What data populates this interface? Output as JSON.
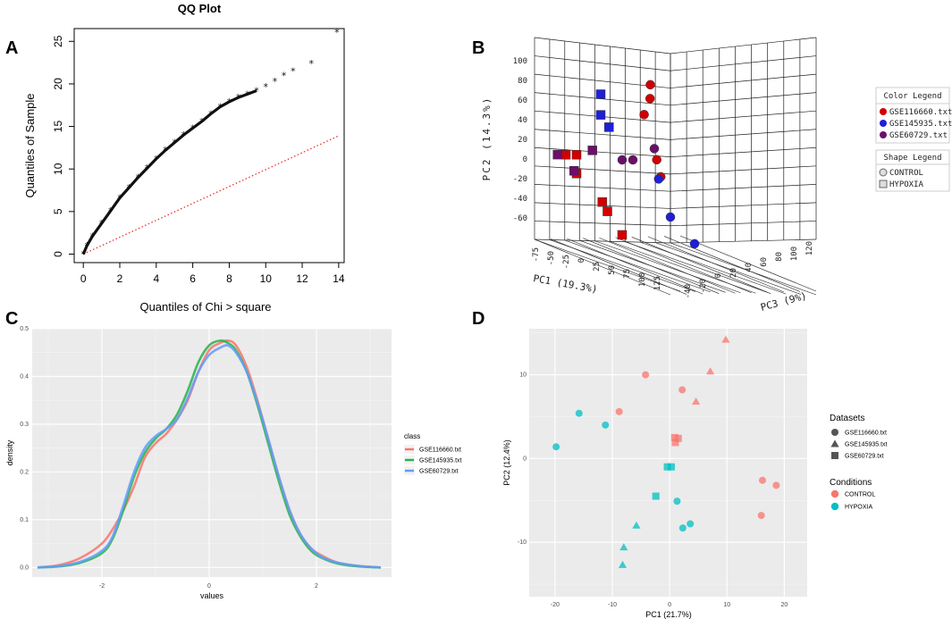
{
  "panel_labels": {
    "a": "A",
    "b": "B",
    "c": "C",
    "d": "D"
  },
  "chart_data": [
    {
      "id": "A",
      "type": "scatter",
      "title": "QQ Plot",
      "xlabel": "Quantiles of Chi > square",
      "ylabel": "Quantiles of Sample",
      "xlim": [
        -0.5,
        14.3
      ],
      "ylim": [
        -1,
        26.5
      ],
      "xticks": [
        0,
        2,
        4,
        6,
        8,
        10,
        12,
        14
      ],
      "yticks": [
        0,
        5,
        10,
        15,
        20,
        25
      ],
      "reference_line": {
        "x": [
          0,
          14
        ],
        "y": [
          0,
          13.9
        ],
        "color": "#e8322e",
        "style": "dotted"
      },
      "points": [
        [
          0,
          0
        ],
        [
          0.2,
          1.0
        ],
        [
          0.5,
          2.1
        ],
        [
          1,
          3.6
        ],
        [
          1.5,
          5.1
        ],
        [
          2,
          6.6
        ],
        [
          2.5,
          7.8
        ],
        [
          3,
          9.0
        ],
        [
          3.5,
          10.1
        ],
        [
          4,
          11.2
        ],
        [
          4.5,
          12.2
        ],
        [
          5,
          13.1
        ],
        [
          5.5,
          14.0
        ],
        [
          6,
          14.8
        ],
        [
          6.5,
          15.6
        ],
        [
          7,
          16.5
        ],
        [
          7.5,
          17.3
        ],
        [
          8,
          17.9
        ],
        [
          8.5,
          18.4
        ],
        [
          9,
          18.8
        ],
        [
          9.5,
          19.2
        ],
        [
          10,
          19.7
        ],
        [
          10.5,
          20.3
        ],
        [
          11,
          21.0
        ],
        [
          11.5,
          21.5
        ],
        [
          12.5,
          22.4
        ],
        [
          13.9,
          26.1
        ]
      ]
    },
    {
      "id": "B",
      "type": "scatter3d",
      "xlabel": "PC1 (19.3%)",
      "ylabel": "PC2 (14.3%)",
      "zlabel": "PC3 (9%)",
      "yticks": [
        100,
        80,
        60,
        40,
        20,
        0,
        -20,
        -40,
        -60
      ],
      "xticks": [
        -75,
        -50,
        -25,
        0,
        25,
        50,
        75,
        100,
        125
      ],
      "zticks": [
        -40,
        -20,
        0,
        20,
        40,
        60,
        80,
        100,
        120
      ],
      "color_legend_title": "Color Legend",
      "color_legend": [
        {
          "label": "GSE116660.txt",
          "color": "#d10000"
        },
        {
          "label": "GSE145935.txt",
          "color": "#1f1fd6"
        },
        {
          "label": "GSE60729.txt",
          "color": "#6a0f6a"
        }
      ],
      "shape_legend_title": "Shape Legend",
      "shape_legend": [
        {
          "label": "CONTROL",
          "shape": "circle"
        },
        {
          "label": "HYPOXIA",
          "shape": "square"
        }
      ],
      "points": [
        {
          "pc1": -18,
          "pc2": 80,
          "pc3": 5,
          "dataset": "GSE116660.txt",
          "condition": "CONTROL"
        },
        {
          "pc1": -20,
          "pc2": 65,
          "pc3": 8,
          "dataset": "GSE116660.txt",
          "condition": "CONTROL"
        },
        {
          "pc1": -22,
          "pc2": 48,
          "pc3": 4,
          "dataset": "GSE116660.txt",
          "condition": "CONTROL"
        },
        {
          "pc1": -15,
          "pc2": 0,
          "pc3": 8,
          "dataset": "GSE116660.txt",
          "condition": "CONTROL"
        },
        {
          "pc1": -12,
          "pc2": -18,
          "pc3": 8,
          "dataset": "GSE116660.txt",
          "condition": "CONTROL"
        },
        {
          "pc1": -60,
          "pc2": 5,
          "pc3": -30,
          "dataset": "GSE116660.txt",
          "condition": "HYPOXIA"
        },
        {
          "pc1": -55,
          "pc2": 5,
          "pc3": -25,
          "dataset": "GSE116660.txt",
          "condition": "HYPOXIA"
        },
        {
          "pc1": -55,
          "pc2": -15,
          "pc3": -25,
          "dataset": "GSE116660.txt",
          "condition": "HYPOXIA"
        },
        {
          "pc1": -40,
          "pc2": -45,
          "pc3": -18,
          "dataset": "GSE116660.txt",
          "condition": "HYPOXIA"
        },
        {
          "pc1": -38,
          "pc2": -55,
          "pc3": -15,
          "dataset": "GSE116660.txt",
          "condition": "HYPOXIA"
        },
        {
          "pc1": -30,
          "pc2": -80,
          "pc3": -10,
          "dataset": "GSE116660.txt",
          "condition": "HYPOXIA"
        },
        {
          "pc1": -10,
          "pc2": -20,
          "pc3": 2,
          "dataset": "GSE145935.txt",
          "condition": "CONTROL"
        },
        {
          "pc1": 0,
          "pc2": -60,
          "pc3": 0,
          "dataset": "GSE145935.txt",
          "condition": "CONTROL"
        },
        {
          "pc1": 15,
          "pc2": -88,
          "pc3": 5,
          "dataset": "GSE145935.txt",
          "condition": "CONTROL"
        },
        {
          "pc1": -40,
          "pc2": 70,
          "pc3": -20,
          "dataset": "GSE145935.txt",
          "condition": "HYPOXIA"
        },
        {
          "pc1": -40,
          "pc2": 48,
          "pc3": -20,
          "dataset": "GSE145935.txt",
          "condition": "HYPOXIA"
        },
        {
          "pc1": -35,
          "pc2": 35,
          "pc3": -18,
          "dataset": "GSE145935.txt",
          "condition": "HYPOXIA"
        },
        {
          "pc1": -25,
          "pc2": 0,
          "pc3": -5,
          "dataset": "GSE60729.txt",
          "condition": "CONTROL"
        },
        {
          "pc1": -30,
          "pc2": 0,
          "pc3": -10,
          "dataset": "GSE60729.txt",
          "condition": "CONTROL"
        },
        {
          "pc1": -15,
          "pc2": 12,
          "pc3": 5,
          "dataset": "GSE60729.txt",
          "condition": "CONTROL"
        },
        {
          "pc1": -65,
          "pc2": 5,
          "pc3": -32,
          "dataset": "GSE60729.txt",
          "condition": "HYPOXIA"
        },
        {
          "pc1": -45,
          "pc2": 10,
          "pc3": -22,
          "dataset": "GSE60729.txt",
          "condition": "HYPOXIA"
        },
        {
          "pc1": -55,
          "pc2": -12,
          "pc3": -28,
          "dataset": "GSE60729.txt",
          "condition": "HYPOXIA"
        }
      ]
    },
    {
      "id": "C",
      "type": "line",
      "xlabel": "values",
      "ylabel": "density",
      "xlim": [
        -3.3,
        3.4
      ],
      "ylim": [
        -0.02,
        0.5
      ],
      "xticks": [
        -2,
        0,
        2
      ],
      "yticks": [
        0.0,
        0.1,
        0.2,
        0.3,
        0.4,
        0.5
      ],
      "ytick_labels": [
        "0.0",
        "0.1",
        "0.2",
        "0.3",
        "0.4",
        "0.5"
      ],
      "legend_title": "class",
      "series": [
        {
          "name": "GSE116660.txt",
          "color": "#f8766d",
          "x": [
            -3.2,
            -2.8,
            -2.4,
            -2.0,
            -1.8,
            -1.6,
            -1.4,
            -1.2,
            -1.0,
            -0.8,
            -0.6,
            -0.4,
            -0.2,
            0.0,
            0.2,
            0.35,
            0.5,
            0.7,
            0.9,
            1.1,
            1.3,
            1.5,
            1.7,
            1.9,
            2.1,
            2.4,
            2.8,
            3.2
          ],
          "y": [
            0.0,
            0.005,
            0.02,
            0.05,
            0.08,
            0.12,
            0.17,
            0.23,
            0.26,
            0.28,
            0.31,
            0.35,
            0.41,
            0.455,
            0.47,
            0.475,
            0.465,
            0.42,
            0.35,
            0.27,
            0.19,
            0.12,
            0.07,
            0.04,
            0.025,
            0.01,
            0.003,
            0.0
          ]
        },
        {
          "name": "GSE145935.txt",
          "color": "#27b34a",
          "x": [
            -3.2,
            -2.8,
            -2.4,
            -2.0,
            -1.8,
            -1.6,
            -1.4,
            -1.2,
            -1.0,
            -0.8,
            -0.6,
            -0.4,
            -0.2,
            0.0,
            0.2,
            0.35,
            0.5,
            0.7,
            0.9,
            1.1,
            1.3,
            1.5,
            1.7,
            1.9,
            2.1,
            2.4,
            2.8,
            3.2
          ],
          "y": [
            0.0,
            0.002,
            0.01,
            0.03,
            0.06,
            0.12,
            0.19,
            0.24,
            0.27,
            0.29,
            0.32,
            0.37,
            0.43,
            0.465,
            0.475,
            0.47,
            0.455,
            0.41,
            0.34,
            0.26,
            0.18,
            0.11,
            0.065,
            0.035,
            0.02,
            0.008,
            0.002,
            0.0
          ]
        },
        {
          "name": "GSE60729.txt",
          "color": "#619cff",
          "x": [
            -3.2,
            -2.8,
            -2.4,
            -2.0,
            -1.8,
            -1.6,
            -1.4,
            -1.2,
            -1.0,
            -0.8,
            -0.6,
            -0.4,
            -0.2,
            0.0,
            0.2,
            0.35,
            0.5,
            0.7,
            0.9,
            1.1,
            1.3,
            1.5,
            1.7,
            1.9,
            2.1,
            2.4,
            2.8,
            3.2
          ],
          "y": [
            0.0,
            0.003,
            0.012,
            0.035,
            0.065,
            0.13,
            0.2,
            0.25,
            0.275,
            0.29,
            0.31,
            0.355,
            0.41,
            0.445,
            0.46,
            0.465,
            0.45,
            0.41,
            0.345,
            0.27,
            0.19,
            0.12,
            0.07,
            0.04,
            0.022,
            0.01,
            0.003,
            0.0
          ]
        }
      ]
    },
    {
      "id": "D",
      "type": "scatter",
      "xlabel": "PC1 (21.7%)",
      "ylabel": "PC2 (12.4%)",
      "xlim": [
        -24.5,
        24
      ],
      "ylim": [
        -16.5,
        15.5
      ],
      "xticks": [
        -20,
        -10,
        0,
        10,
        20
      ],
      "yticks": [
        -10,
        0,
        10
      ],
      "datasets_title": "Datasets",
      "datasets": [
        {
          "label": "GSE116660.txt",
          "shape": "circle"
        },
        {
          "label": "GSE145935.txt",
          "shape": "triangle"
        },
        {
          "label": "GSE60729.txt",
          "shape": "square"
        }
      ],
      "conditions_title": "Conditions",
      "conditions": [
        {
          "label": "CONTROL",
          "color": "#f8766d"
        },
        {
          "label": "HYPOXIA",
          "color": "#00bfc4"
        }
      ],
      "points": [
        {
          "x": -4.2,
          "y": 10.0,
          "shape": "circle",
          "condition": "CONTROL"
        },
        {
          "x": 2.2,
          "y": 8.2,
          "shape": "circle",
          "condition": "CONTROL"
        },
        {
          "x": -8.8,
          "y": 5.6,
          "shape": "circle",
          "condition": "CONTROL"
        },
        {
          "x": 16.2,
          "y": -2.6,
          "shape": "circle",
          "condition": "CONTROL"
        },
        {
          "x": 18.6,
          "y": -3.2,
          "shape": "circle",
          "condition": "CONTROL"
        },
        {
          "x": 16.0,
          "y": -6.8,
          "shape": "circle",
          "condition": "CONTROL"
        },
        {
          "x": 9.8,
          "y": 14.2,
          "shape": "triangle",
          "condition": "CONTROL"
        },
        {
          "x": 7.1,
          "y": 10.4,
          "shape": "triangle",
          "condition": "CONTROL"
        },
        {
          "x": 4.6,
          "y": 6.8,
          "shape": "triangle",
          "condition": "CONTROL"
        },
        {
          "x": 0.9,
          "y": 2.5,
          "shape": "square",
          "condition": "CONTROL"
        },
        {
          "x": 1.5,
          "y": 2.4,
          "shape": "square",
          "condition": "CONTROL"
        },
        {
          "x": 1.0,
          "y": 1.9,
          "shape": "square",
          "condition": "CONTROL"
        },
        {
          "x": -15.8,
          "y": 5.4,
          "shape": "circle",
          "condition": "HYPOXIA"
        },
        {
          "x": -11.2,
          "y": 4.0,
          "shape": "circle",
          "condition": "HYPOXIA"
        },
        {
          "x": -19.8,
          "y": 1.4,
          "shape": "circle",
          "condition": "HYPOXIA"
        },
        {
          "x": 1.3,
          "y": -5.1,
          "shape": "circle",
          "condition": "HYPOXIA"
        },
        {
          "x": 3.6,
          "y": -7.8,
          "shape": "circle",
          "condition": "HYPOXIA"
        },
        {
          "x": 2.3,
          "y": -8.3,
          "shape": "circle",
          "condition": "HYPOXIA"
        },
        {
          "x": -5.8,
          "y": -8.0,
          "shape": "triangle",
          "condition": "HYPOXIA"
        },
        {
          "x": -8.0,
          "y": -10.6,
          "shape": "triangle",
          "condition": "HYPOXIA"
        },
        {
          "x": -8.2,
          "y": -12.7,
          "shape": "triangle",
          "condition": "HYPOXIA"
        },
        {
          "x": -0.4,
          "y": -1.0,
          "shape": "square",
          "condition": "HYPOXIA"
        },
        {
          "x": 0.3,
          "y": -1.0,
          "shape": "square",
          "condition": "HYPOXIA"
        },
        {
          "x": -2.4,
          "y": -4.5,
          "shape": "square",
          "condition": "HYPOXIA"
        }
      ]
    }
  ]
}
